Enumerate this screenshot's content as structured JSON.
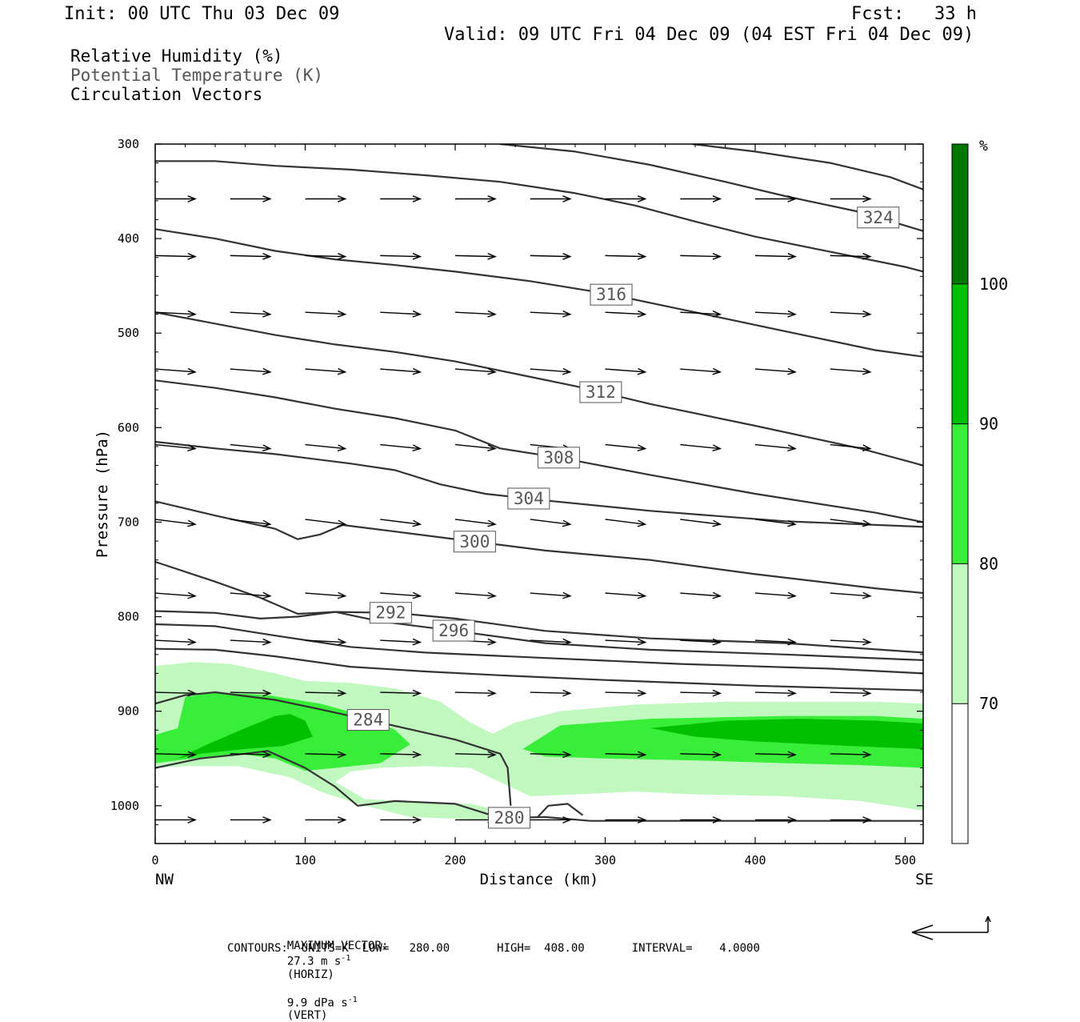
{
  "header": {
    "init": "Init: 00 UTC Thu 03 Dec 09",
    "fcst_label": "Fcst:",
    "fcst_value": "33 h",
    "valid": "Valid: 09 UTC Fri 04 Dec 09 (04 EST Fri 04 Dec 09)"
  },
  "fields": [
    {
      "label": "Relative Humidity (%)",
      "color": "#000000"
    },
    {
      "label": "Potential Temperature (K)",
      "color": "#555555"
    },
    {
      "label": "Circulation Vectors",
      "color": "#000000"
    }
  ],
  "footer": {
    "max_vector_label": "MAXIMUM VECTOR:",
    "horiz_value": "27.3 m s",
    "horiz_exp": "-1",
    "horiz_tag": "(HORIZ)",
    "vert_value": "9.9 dPa s",
    "vert_exp": "-1",
    "vert_tag": "(VERT)",
    "contours": "CONTOURS:  UNITS=K  LOW=   280.00       HIGH=  408.00       INTERVAL=    4.0000"
  },
  "chart_data": {
    "type": "cross-section",
    "xlabel": "Distance (km)",
    "ylabel": "Pressure (hPa)",
    "xlim": [
      0,
      512
    ],
    "ylim": [
      1040,
      300
    ],
    "x_ticks": [
      0,
      100,
      200,
      300,
      400,
      500
    ],
    "y_ticks": [
      300,
      400,
      500,
      600,
      700,
      800,
      900,
      1000
    ],
    "x_end_labels": {
      "left": "NW",
      "right": "SE"
    },
    "colorbar": {
      "unit": "%",
      "levels": [
        70,
        80,
        90,
        100
      ],
      "colors": [
        "#ffffff",
        "#c0f8c0",
        "#38ee38",
        "#00c000",
        "#007800"
      ]
    },
    "rh_regions": [
      {
        "level": 70,
        "color": "#c0f8c0",
        "points": [
          [
            0,
            852
          ],
          [
            25,
            848
          ],
          [
            50,
            850
          ],
          [
            80,
            860
          ],
          [
            100,
            868
          ],
          [
            130,
            870
          ],
          [
            160,
            876
          ],
          [
            190,
            890
          ],
          [
            210,
            912
          ],
          [
            225,
            924
          ],
          [
            240,
            912
          ],
          [
            270,
            900
          ],
          [
            320,
            893
          ],
          [
            380,
            890
          ],
          [
            440,
            890
          ],
          [
            480,
            890
          ],
          [
            512,
            892
          ],
          [
            512,
            1005
          ],
          [
            470,
            995
          ],
          [
            420,
            990
          ],
          [
            360,
            988
          ],
          [
            320,
            985
          ],
          [
            280,
            988
          ],
          [
            250,
            990
          ],
          [
            230,
            975
          ],
          [
            210,
            960
          ],
          [
            180,
            958
          ],
          [
            150,
            960
          ],
          [
            130,
            964
          ],
          [
            120,
            975
          ],
          [
            140,
            993
          ],
          [
            210,
            998
          ],
          [
            230,
            1005
          ],
          [
            225,
            1015
          ],
          [
            170,
            1012
          ],
          [
            135,
            998
          ],
          [
            110,
            985
          ],
          [
            90,
            970
          ],
          [
            55,
            958
          ],
          [
            20,
            958
          ],
          [
            0,
            960
          ]
        ]
      },
      {
        "level": 80,
        "color": "#38ee38",
        "points": [
          [
            0,
            925
          ],
          [
            15,
            918
          ],
          [
            20,
            885
          ],
          [
            40,
            880
          ],
          [
            75,
            883
          ],
          [
            110,
            892
          ],
          [
            140,
            905
          ],
          [
            160,
            920
          ],
          [
            170,
            935
          ],
          [
            150,
            955
          ],
          [
            120,
            960
          ],
          [
            100,
            963
          ],
          [
            80,
            950
          ],
          [
            55,
            945
          ],
          [
            25,
            950
          ],
          [
            0,
            955
          ]
        ]
      },
      {
        "level": 80,
        "color": "#38ee38",
        "points": [
          [
            245,
            940
          ],
          [
            270,
            915
          ],
          [
            330,
            908
          ],
          [
            420,
            905
          ],
          [
            480,
            905
          ],
          [
            512,
            908
          ],
          [
            512,
            960
          ],
          [
            470,
            957
          ],
          [
            420,
            955
          ],
          [
            360,
            952
          ],
          [
            300,
            950
          ],
          [
            260,
            948
          ]
        ]
      },
      {
        "level": 90,
        "color": "#00c000",
        "points": [
          [
            15,
            950
          ],
          [
            35,
            935
          ],
          [
            60,
            918
          ],
          [
            80,
            905
          ],
          [
            90,
            903
          ],
          [
            100,
            910
          ],
          [
            105,
            927
          ],
          [
            85,
            937
          ],
          [
            60,
            940
          ],
          [
            30,
            945
          ]
        ]
      },
      {
        "level": 90,
        "color": "#00c000",
        "points": [
          [
            330,
            918
          ],
          [
            380,
            910
          ],
          [
            430,
            908
          ],
          [
            480,
            910
          ],
          [
            512,
            913
          ],
          [
            512,
            940
          ],
          [
            480,
            938
          ],
          [
            440,
            935
          ],
          [
            400,
            932
          ],
          [
            360,
            927
          ]
        ]
      }
    ],
    "theta_contours": [
      {
        "value": 280,
        "label_x": 236,
        "points": [
          [
            0,
            960
          ],
          [
            30,
            950
          ],
          [
            60,
            945
          ],
          [
            75,
            942
          ],
          [
            100,
            960
          ],
          [
            120,
            980
          ],
          [
            135,
            1000
          ],
          [
            160,
            995
          ],
          [
            200,
            998
          ],
          [
            230,
            1013
          ],
          [
            260,
            1012
          ],
          [
            290,
            1016
          ],
          [
            400,
            1016
          ],
          [
            512,
            1016
          ]
        ]
      },
      {
        "value": 280,
        "points": [
          [
            255,
            1012
          ],
          [
            262,
            1000
          ],
          [
            275,
            998
          ],
          [
            285,
            1010
          ]
        ]
      },
      {
        "value": 284,
        "label_x": 142,
        "points": [
          [
            0,
            892
          ],
          [
            20,
            883
          ],
          [
            40,
            880
          ],
          [
            80,
            888
          ],
          [
            110,
            898
          ],
          [
            150,
            912
          ],
          [
            200,
            930
          ],
          [
            230,
            945
          ],
          [
            235,
            960
          ],
          [
            237,
            1000
          ]
        ]
      },
      {
        "value": 284,
        "points": [
          [
            0,
            834
          ],
          [
            40,
            835
          ],
          [
            80,
            842
          ],
          [
            130,
            853
          ],
          [
            180,
            858
          ],
          [
            230,
            862
          ],
          [
            300,
            867
          ],
          [
            400,
            873
          ],
          [
            512,
            878
          ]
        ]
      },
      {
        "value": 288,
        "points": [
          [
            0,
            808
          ],
          [
            40,
            810
          ],
          [
            80,
            820
          ],
          [
            130,
            832
          ],
          [
            180,
            838
          ],
          [
            250,
            843
          ],
          [
            350,
            850
          ],
          [
            450,
            855
          ],
          [
            512,
            860
          ]
        ]
      },
      {
        "value": 292,
        "label_x": 157,
        "points": [
          [
            0,
            794
          ],
          [
            40,
            796
          ],
          [
            70,
            802
          ],
          [
            95,
            800
          ],
          [
            120,
            795
          ],
          [
            160,
            796
          ],
          [
            200,
            802
          ],
          [
            260,
            815
          ],
          [
            330,
            823
          ],
          [
            420,
            828
          ],
          [
            512,
            838
          ]
        ]
      },
      {
        "value": 296,
        "label_x": 199,
        "points": [
          [
            0,
            742
          ],
          [
            40,
            763
          ],
          [
            70,
            780
          ],
          [
            95,
            797
          ],
          [
            120,
            795
          ],
          [
            150,
            805
          ],
          [
            200,
            815
          ],
          [
            260,
            828
          ],
          [
            330,
            835
          ],
          [
            420,
            840
          ],
          [
            512,
            846
          ]
        ]
      },
      {
        "value": 300,
        "label_x": 213,
        "points": [
          [
            0,
            678
          ],
          [
            40,
            693
          ],
          [
            80,
            707
          ],
          [
            95,
            718
          ],
          [
            110,
            713
          ],
          [
            125,
            703
          ],
          [
            160,
            710
          ],
          [
            210,
            720
          ],
          [
            260,
            730
          ],
          [
            330,
            740
          ],
          [
            400,
            755
          ],
          [
            480,
            770
          ],
          [
            512,
            775
          ]
        ]
      },
      {
        "value": 304,
        "label_x": 249,
        "points": [
          [
            0,
            615
          ],
          [
            40,
            622
          ],
          [
            80,
            628
          ],
          [
            130,
            638
          ],
          [
            160,
            645
          ],
          [
            190,
            660
          ],
          [
            220,
            670
          ],
          [
            260,
            677
          ],
          [
            330,
            688
          ],
          [
            420,
            699
          ],
          [
            512,
            705
          ]
        ]
      },
      {
        "value": 308,
        "label_x": 269,
        "points": [
          [
            0,
            550
          ],
          [
            40,
            558
          ],
          [
            80,
            568
          ],
          [
            120,
            580
          ],
          [
            160,
            590
          ],
          [
            200,
            603
          ],
          [
            230,
            622
          ],
          [
            270,
            632
          ],
          [
            330,
            650
          ],
          [
            400,
            670
          ],
          [
            480,
            690
          ],
          [
            512,
            700
          ]
        ]
      },
      {
        "value": 312,
        "label_x": 297,
        "points": [
          [
            0,
            478
          ],
          [
            40,
            490
          ],
          [
            80,
            502
          ],
          [
            120,
            512
          ],
          [
            160,
            520
          ],
          [
            200,
            530
          ],
          [
            240,
            543
          ],
          [
            280,
            556
          ],
          [
            330,
            575
          ],
          [
            400,
            598
          ],
          [
            470,
            622
          ],
          [
            512,
            640
          ]
        ]
      },
      {
        "value": 316,
        "label_x": 304,
        "points": [
          [
            0,
            390
          ],
          [
            40,
            400
          ],
          [
            80,
            413
          ],
          [
            120,
            422
          ],
          [
            160,
            428
          ],
          [
            200,
            435
          ],
          [
            250,
            445
          ],
          [
            300,
            458
          ],
          [
            360,
            478
          ],
          [
            420,
            498
          ],
          [
            480,
            518
          ],
          [
            512,
            525
          ]
        ]
      },
      {
        "value": 320,
        "points": [
          [
            0,
            318
          ],
          [
            40,
            318
          ],
          [
            80,
            323
          ],
          [
            130,
            327
          ],
          [
            180,
            333
          ],
          [
            230,
            340
          ],
          [
            280,
            352
          ],
          [
            320,
            365
          ],
          [
            360,
            382
          ],
          [
            400,
            398
          ],
          [
            450,
            414
          ],
          [
            500,
            430
          ],
          [
            512,
            435
          ]
        ]
      },
      {
        "value": 324,
        "label_x": 482,
        "points": [
          [
            230,
            300
          ],
          [
            280,
            308
          ],
          [
            330,
            322
          ],
          [
            380,
            340
          ],
          [
            420,
            355
          ],
          [
            470,
            372
          ],
          [
            512,
            392
          ]
        ]
      },
      {
        "value": 328,
        "points": [
          [
            358,
            300
          ],
          [
            400,
            308
          ],
          [
            450,
            320
          ],
          [
            490,
            335
          ],
          [
            512,
            348
          ]
        ]
      }
    ],
    "vector_columns": [
      0,
      50,
      100,
      150,
      200,
      250,
      300,
      350,
      400,
      450,
      500
    ],
    "vector_rows": [
      {
        "p": 358,
        "u": 1.0,
        "w": 0.0
      },
      {
        "p": 418,
        "u": 1.0,
        "w": -0.1
      },
      {
        "p": 478,
        "u": 1.0,
        "w": -0.2
      },
      {
        "p": 538,
        "u": 1.0,
        "w": -0.3
      },
      {
        "p": 618,
        "u": 1.0,
        "w": -0.4
      },
      {
        "p": 697,
        "u": 1.0,
        "w": -0.5
      },
      {
        "p": 775,
        "u": 1.0,
        "w": -0.3
      },
      {
        "p": 825,
        "u": 1.0,
        "w": -0.2
      },
      {
        "p": 880,
        "u": 1.0,
        "w": -0.1
      },
      {
        "p": 945,
        "u": 1.0,
        "w": -0.1
      },
      {
        "p": 1015,
        "u": 1.0,
        "w": 0.0
      }
    ]
  }
}
